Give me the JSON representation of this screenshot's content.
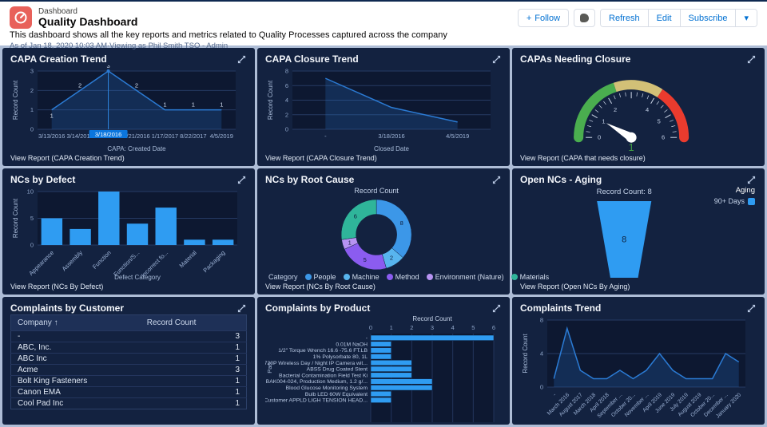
{
  "header": {
    "app_label": "Dashboard",
    "title": "Quality Dashboard",
    "description": "This dashboard shows all the key reports and metrics related to Quality Processes captured across the company",
    "as_of": "As of Jan 18, 2020 10:03 AM·Viewing as Phil Smith TSO - Admin",
    "buttons": {
      "follow": "Follow",
      "refresh": "Refresh",
      "edit": "Edit",
      "subscribe": "Subscribe",
      "more": "▾"
    }
  },
  "colors": {
    "accent_blue": "#0070d2",
    "bar_blue": "#2f9cf2",
    "line_blue": "#2b7bd4",
    "highlight_blue": "#0b76de",
    "panel_bg": "#132240",
    "plot_bg": "#0d1831",
    "page_bg": "#aebdd6",
    "gauge_green": "#4aae4f",
    "gauge_yellow": "#d2c077",
    "gauge_red": "#ea3b2e"
  },
  "panels": [
    {
      "title": "CAPA Creation Trend",
      "view_report": "View Report (CAPA Creation Trend)"
    },
    {
      "title": "CAPA Closure Trend",
      "view_report": "View Report (CAPA Closure Trend)"
    },
    {
      "title": "CAPAs Needing Closure",
      "view_report": "View Report (CAPA that needs closure)"
    },
    {
      "title": "NCs by Defect",
      "view_report": "View Report (NCs By Defect)"
    },
    {
      "title": "NCs by Root Cause",
      "view_report": "View Report (NCs By Root Cause)"
    },
    {
      "title": "Open NCs - Aging",
      "view_report": "View Report (Open NCs By Aging)"
    },
    {
      "title": "Complaints by Customer",
      "view_report": ""
    },
    {
      "title": "Complaints by Product",
      "view_report": ""
    },
    {
      "title": "Complaints Trend",
      "view_report": ""
    }
  ],
  "chart_data": [
    {
      "type": "area",
      "title": "CAPA Creation Trend",
      "categories": [
        "3/13/2016",
        "3/14/2016",
        "3/18/2016",
        "3/21/2016",
        "1/17/2017",
        "8/22/2017",
        "4/5/2019"
      ],
      "values": [
        1,
        2,
        3,
        2,
        1,
        1,
        1
      ],
      "xlabel": "CAPA: Created Date",
      "ylabel": "Record Count",
      "yticks": [
        0,
        1,
        2,
        3
      ],
      "point_labels": true,
      "highlight_index": 2,
      "highlight_label": "3/18/2016"
    },
    {
      "type": "area",
      "title": "CAPA Closure Trend",
      "categories": [
        "-",
        "3/18/2016",
        "4/5/2019"
      ],
      "values": [
        7,
        3,
        1
      ],
      "xlabel": "Closed Date",
      "ylabel": "Record Count",
      "yticks": [
        0,
        2,
        4,
        6,
        8
      ]
    },
    {
      "type": "gauge",
      "title": "CAPAs Needing Closure",
      "value": 1,
      "min": 0,
      "max": 6,
      "bands": [
        {
          "from": 0,
          "to": 2.4,
          "color": "#4aae4f"
        },
        {
          "from": 2.4,
          "to": 4.1,
          "color": "#d2c077"
        },
        {
          "from": 4.1,
          "to": 6,
          "color": "#ea3b2e"
        }
      ],
      "tick_labels": [
        0,
        1,
        2,
        4,
        5,
        6
      ],
      "value_color": "#3f9c44"
    },
    {
      "type": "bar",
      "title": "NCs by Defect",
      "categories": [
        "Appearance",
        "Assembly",
        "Function",
        "Function/S...",
        "Incorrect fo...",
        "Material",
        "Packaging"
      ],
      "values": [
        5,
        3,
        10,
        4,
        7,
        1,
        1
      ],
      "xlabel": "Defect Category",
      "ylabel": "Record Count",
      "yticks": [
        0,
        5,
        10
      ]
    },
    {
      "type": "donut",
      "title": "Record Count",
      "legend_label": "Category",
      "slices": [
        {
          "label": "People",
          "value": 8,
          "color": "#3c97e8"
        },
        {
          "label": "Machine",
          "value": 2,
          "color": "#58b5ee"
        },
        {
          "label": "Method",
          "value": 5,
          "color": "#8b5cf0"
        },
        {
          "label": "Environment (Nature)",
          "value": 1,
          "color": "#b793f2"
        },
        {
          "label": "Materials",
          "value": 6,
          "color": "#2fb59a"
        }
      ]
    },
    {
      "type": "funnel",
      "title": "Record Count: 8",
      "value": 8,
      "legend_title": "Aging",
      "legend_items": [
        {
          "label": "90+ Days",
          "color": "#2f9cf2"
        }
      ]
    },
    {
      "type": "table",
      "columns": [
        "Company ↑",
        "Record Count"
      ],
      "rows": [
        [
          "-",
          3
        ],
        [
          "ABC, Inc.",
          1
        ],
        [
          "ABC Inc",
          1
        ],
        [
          "Acme",
          3
        ],
        [
          "Bolt King Fasteners",
          1
        ],
        [
          "Canon EMA",
          1
        ],
        [
          "Cool Pad Inc",
          1
        ]
      ]
    },
    {
      "type": "hbar",
      "axis_title": "Record Count",
      "ylabel": "Part",
      "categories": [
        "-",
        "0.01M NaOH",
        "1/2\" Torque Wrench 16.6 -75.6 FT.LB",
        "1% Polysorbate 80, 1L",
        "720P Wireless Day / Night IP Camera wit...",
        "ABSS Drug Coated Stent",
        "Bacterial Contamination Field Test Ki",
        "BAK004-024, Production Medium, 1.2 g/...",
        "Blood Glucose Monitoring System",
        "Bulb LED 60W Equivalent",
        "Customer APPLD LIGH TENSION HEAD..."
      ],
      "values": [
        6,
        1,
        1,
        1,
        2,
        2,
        2,
        3,
        3,
        1,
        1
      ],
      "xticks": [
        0,
        1,
        2,
        3,
        4,
        5,
        6
      ]
    },
    {
      "type": "area",
      "title": "Complaints Trend",
      "categories": [
        "-",
        "March 2016",
        "August 2017",
        "March 2018",
        "April 2018",
        "September ...",
        "October 20...",
        "November ...",
        "April 2019",
        "June 2019",
        "July 2019",
        "August 2019",
        "October 20...",
        "December ...",
        "January 2020"
      ],
      "values": [
        1,
        7,
        2,
        1,
        1,
        2,
        1,
        2,
        4,
        2,
        1,
        1,
        1,
        4,
        3
      ],
      "ylabel": "Record Count",
      "yticks": [
        0,
        4,
        8
      ],
      "rotate_labels": true
    }
  ]
}
